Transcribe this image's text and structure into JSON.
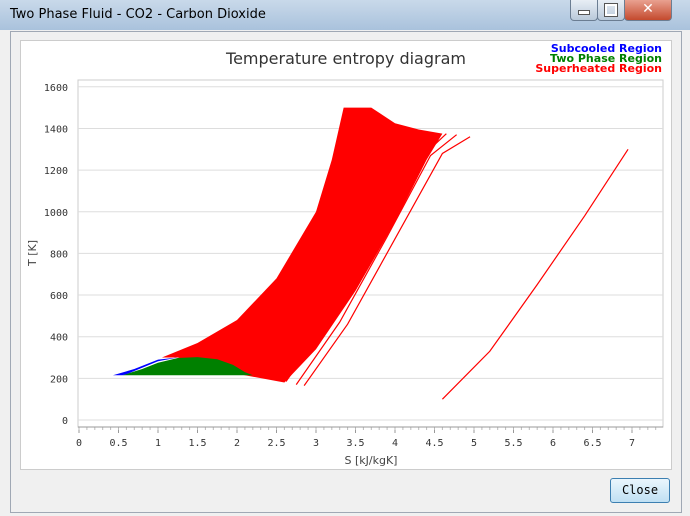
{
  "window": {
    "title": "Two Phase Fluid - CO2 - Carbon Dioxide",
    "close_button": "Close"
  },
  "chart_data": {
    "type": "area",
    "title": "Temperature entropy diagram",
    "xlabel": "S [kJ/kgK]",
    "ylabel": "T [K]",
    "xlim": [
      0,
      7.3
    ],
    "ylim": [
      -20,
      1620
    ],
    "xticks": [
      "0",
      "0.5",
      "1",
      "1.5",
      "2",
      "2.5",
      "3",
      "3.5",
      "4",
      "4.5",
      "5",
      "5.5",
      "6",
      "6.5",
      "7"
    ],
    "yticks": [
      "0",
      "200",
      "400",
      "600",
      "800",
      "1000",
      "1200",
      "1400",
      "1600"
    ],
    "legend": [
      "Subcooled Region",
      "Two Phase Region",
      "Superheated Region"
    ],
    "legend_placement": "top-right",
    "colors": {
      "subcooled": "#0000ff",
      "twophase": "#008000",
      "superheated": "#ff0000"
    },
    "regions": [
      {
        "name": "Subcooled Region",
        "points": [
          [
            0.43,
            215
          ],
          [
            0.7,
            245
          ],
          [
            1.0,
            290
          ],
          [
            1.25,
            300
          ],
          [
            1.0,
            282
          ],
          [
            0.6,
            220
          ],
          [
            0.55,
            215
          ]
        ]
      },
      {
        "name": "Two Phase Region",
        "points": [
          [
            0.55,
            215
          ],
          [
            0.8,
            245
          ],
          [
            1.0,
            275
          ],
          [
            1.25,
            298
          ],
          [
            1.5,
            302
          ],
          [
            1.75,
            292
          ],
          [
            1.95,
            265
          ],
          [
            2.1,
            230
          ],
          [
            2.2,
            215
          ]
        ]
      },
      {
        "name": "Superheated Region",
        "points": [
          [
            1.05,
            300
          ],
          [
            1.5,
            370
          ],
          [
            2.0,
            480
          ],
          [
            2.5,
            680
          ],
          [
            3.0,
            1000
          ],
          [
            3.2,
            1250
          ],
          [
            3.35,
            1500
          ],
          [
            3.7,
            1500
          ],
          [
            4.0,
            1425
          ],
          [
            4.3,
            1395
          ],
          [
            4.6,
            1375
          ],
          [
            4.4,
            1250
          ],
          [
            4.0,
            950
          ],
          [
            3.5,
            620
          ],
          [
            3.0,
            340
          ],
          [
            2.6,
            180
          ],
          [
            2.1,
            215
          ],
          [
            1.25,
            300
          ]
        ]
      }
    ],
    "isobar_lines": [
      [
        [
          2.62,
          185
        ],
        [
          3.2,
          500
        ],
        [
          3.8,
          900
        ],
        [
          4.3,
          1250
        ],
        [
          4.65,
          1375
        ]
      ],
      [
        [
          2.75,
          170
        ],
        [
          3.3,
          470
        ],
        [
          3.9,
          880
        ],
        [
          4.45,
          1270
        ],
        [
          4.78,
          1370
        ]
      ],
      [
        [
          2.85,
          165
        ],
        [
          3.4,
          460
        ],
        [
          4.0,
          870
        ],
        [
          4.6,
          1280
        ],
        [
          4.95,
          1360
        ]
      ],
      [
        [
          4.6,
          100
        ],
        [
          5.2,
          330
        ],
        [
          5.8,
          650
        ],
        [
          6.4,
          980
        ],
        [
          6.95,
          1300
        ]
      ]
    ]
  }
}
